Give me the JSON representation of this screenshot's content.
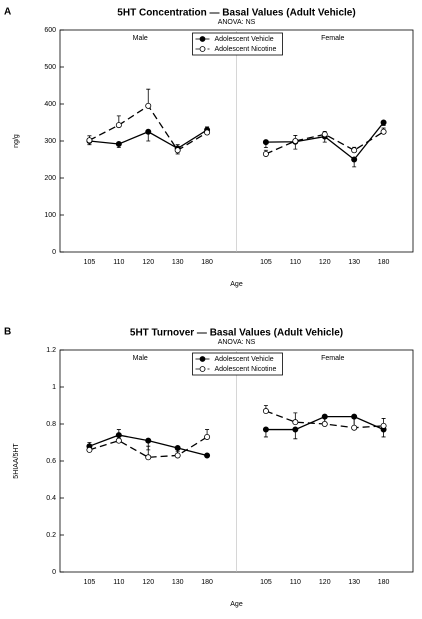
{
  "chart_data": [
    {
      "type": "line",
      "panel": "A",
      "title": "5HT Concentration — Basal Values (Adult Vehicle)",
      "subtitle": "ANOVA:  NS",
      "y_label": "ng/g",
      "x_label": "Age",
      "groups": [
        "Male",
        "Female"
      ],
      "categories": [
        "105",
        "110",
        "120",
        "130",
        "180",
        null,
        "105",
        "110",
        "120",
        "130",
        "180"
      ],
      "ylim": [
        0,
        600
      ],
      "yticks": [
        0,
        100,
        200,
        300,
        400,
        500,
        600
      ],
      "legend": "top",
      "series": [
        {
          "name": "Adolescent Vehicle",
          "color": "#000000",
          "line_style": "solid",
          "values": [
            300,
            292,
            325,
            280,
            330,
            null,
            297,
            298,
            312,
            250,
            350
          ],
          "errors": [
            10,
            10,
            25,
            15,
            10,
            null,
            15,
            20,
            15,
            20,
            8
          ]
        },
        {
          "name": "Adolescent Nicotine",
          "color": "#ffffff",
          "line_style": "dashed",
          "values": [
            302,
            343,
            395,
            275,
            323,
            null,
            265,
            300,
            318,
            275,
            325
          ],
          "errors": [
            12,
            25,
            45,
            15,
            15,
            null,
            10,
            15,
            8,
            8,
            10
          ]
        }
      ]
    },
    {
      "type": "line",
      "panel": "B",
      "title": "5HT Turnover — Basal Values (Adult Vehicle)",
      "subtitle": "ANOVA:  NS",
      "y_label": "5HIAA/5HT",
      "x_label": "Age",
      "groups": [
        "Male",
        "Female"
      ],
      "categories": [
        "105",
        "110",
        "120",
        "130",
        "180",
        null,
        "105",
        "110",
        "120",
        "130",
        "180"
      ],
      "ylim": [
        0,
        1.2
      ],
      "yticks": [
        0,
        0.2,
        0.4,
        0.6,
        0.8,
        1,
        1.2
      ],
      "legend": "top",
      "series": [
        {
          "name": "Adolescent Vehicle",
          "color": "#000000",
          "line_style": "solid",
          "values": [
            0.68,
            0.74,
            0.71,
            0.67,
            0.63,
            null,
            0.77,
            0.77,
            0.84,
            0.84,
            0.77
          ],
          "errors": [
            0.03,
            0.02,
            0.05,
            0.04,
            null,
            null,
            0.04,
            0.05,
            0.03,
            0.07,
            0.04
          ]
        },
        {
          "name": "Adolescent Nicotine",
          "color": "#ffffff",
          "line_style": "dashed",
          "values": [
            0.66,
            0.71,
            0.62,
            0.63,
            0.73,
            null,
            0.87,
            0.81,
            0.8,
            0.78,
            0.79
          ],
          "errors": [
            0.04,
            0.06,
            0.06,
            0.02,
            0.04,
            null,
            0.03,
            0.05,
            0.04,
            0.06,
            0.04
          ]
        }
      ]
    }
  ]
}
